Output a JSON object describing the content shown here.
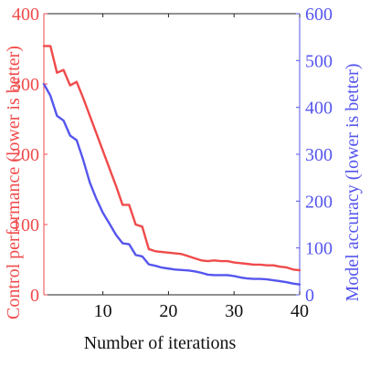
{
  "chart_data": {
    "type": "line",
    "xlabel": "Number of iterations",
    "xlim": [
      1,
      40
    ],
    "x_ticks": [
      10,
      20,
      30,
      40
    ],
    "left_axis": {
      "label": "Control performance (lower is better)",
      "ylim": [
        0,
        400
      ],
      "ticks": [
        0,
        100,
        200,
        300,
        400
      ],
      "color": "#f04a4a"
    },
    "right_axis": {
      "label": "Model accuracy (lower is better)",
      "ylim": [
        0,
        600
      ],
      "ticks": [
        0,
        100,
        200,
        300,
        400,
        500,
        600
      ],
      "color": "#5555ee"
    },
    "series": [
      {
        "axis": "left",
        "color": "#f04a4a",
        "x": [
          1,
          2,
          3,
          4,
          5,
          6,
          7,
          8,
          9,
          10,
          11,
          12,
          13,
          14,
          15,
          16,
          17,
          18,
          19,
          20,
          21,
          22,
          23,
          24,
          25,
          26,
          27,
          28,
          29,
          30,
          31,
          32,
          33,
          34,
          35,
          36,
          37,
          38,
          39,
          40
        ],
        "values": [
          354,
          354,
          316,
          320,
          298,
          303,
          280,
          255,
          230,
          205,
          180,
          155,
          128,
          128,
          100,
          97,
          65,
          62,
          61,
          60,
          59,
          58,
          55,
          52,
          49,
          48,
          49,
          48,
          48,
          46,
          45,
          44,
          43,
          43,
          42,
          42,
          40,
          39,
          36,
          35
        ]
      },
      {
        "axis": "right",
        "color": "#5555ee",
        "x": [
          1,
          2,
          3,
          4,
          5,
          6,
          7,
          8,
          9,
          10,
          11,
          12,
          13,
          14,
          15,
          16,
          17,
          18,
          19,
          20,
          21,
          22,
          23,
          24,
          25,
          26,
          27,
          28,
          29,
          30,
          31,
          32,
          33,
          34,
          35,
          36,
          37,
          38,
          39,
          40
        ],
        "values": [
          450,
          425,
          382,
          372,
          340,
          330,
          288,
          240,
          205,
          175,
          152,
          128,
          110,
          108,
          85,
          82,
          65,
          62,
          58,
          56,
          54,
          53,
          52,
          50,
          47,
          43,
          42,
          42,
          42,
          40,
          37,
          35,
          34,
          34,
          33,
          31,
          29,
          27,
          24,
          22
        ]
      }
    ]
  }
}
